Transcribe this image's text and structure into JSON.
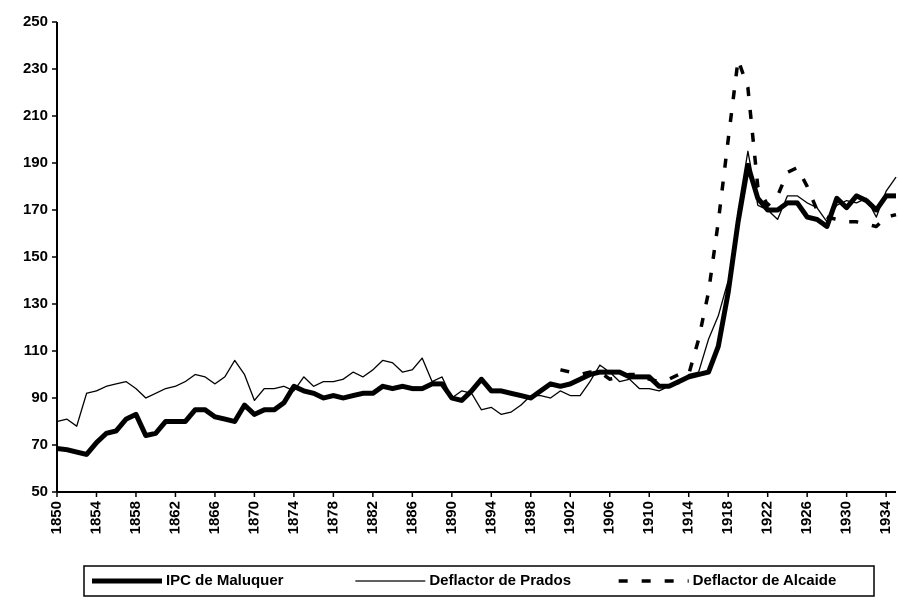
{
  "chart_data": {
    "type": "line",
    "x": [
      1850,
      1851,
      1852,
      1853,
      1854,
      1855,
      1856,
      1857,
      1858,
      1859,
      1860,
      1861,
      1862,
      1863,
      1864,
      1865,
      1866,
      1867,
      1868,
      1869,
      1870,
      1871,
      1872,
      1873,
      1874,
      1875,
      1876,
      1877,
      1878,
      1879,
      1880,
      1881,
      1882,
      1883,
      1884,
      1885,
      1886,
      1887,
      1888,
      1889,
      1890,
      1891,
      1892,
      1893,
      1894,
      1895,
      1896,
      1897,
      1898,
      1899,
      1900,
      1901,
      1902,
      1903,
      1904,
      1905,
      1906,
      1907,
      1908,
      1909,
      1910,
      1911,
      1912,
      1913,
      1914,
      1915,
      1916,
      1917,
      1918,
      1919,
      1920,
      1921,
      1922,
      1923,
      1924,
      1925,
      1926,
      1927,
      1928,
      1929,
      1930,
      1931,
      1932,
      1933,
      1934,
      1935
    ],
    "series": [
      {
        "name": "IPC de Maluquer",
        "color": "#000000",
        "line_width": 5,
        "line_style": "solid",
        "values": [
          68.5,
          68,
          67,
          66,
          71,
          75,
          76,
          81,
          83,
          74,
          75,
          80,
          80,
          80,
          85,
          85,
          82,
          81,
          80,
          87,
          83,
          85,
          85,
          88,
          95,
          93,
          92,
          90,
          91,
          90,
          91,
          92,
          92,
          95,
          94,
          95,
          94,
          94,
          96,
          96,
          90,
          89,
          93,
          98,
          93,
          93,
          92,
          91,
          90,
          93,
          96,
          95,
          96,
          98,
          100,
          101,
          101,
          101,
          99,
          99,
          99,
          95,
          95,
          97,
          99,
          100,
          101,
          112,
          135,
          165,
          189,
          175,
          170,
          170,
          173,
          173,
          167,
          166,
          163,
          175,
          171,
          176,
          174,
          170,
          176,
          176
        ]
      },
      {
        "name": "Deflactor de Prados",
        "color": "#000000",
        "line_width": 1.3,
        "line_style": "solid",
        "values": [
          80,
          81,
          78,
          92,
          93,
          95,
          96,
          97,
          94,
          90,
          92,
          94,
          95,
          97,
          100,
          99,
          96,
          99,
          106,
          100,
          89,
          94,
          94,
          95,
          93,
          99,
          95,
          97,
          97,
          98,
          101,
          99,
          102,
          106,
          105,
          101,
          102,
          107,
          97,
          99,
          90,
          93,
          92,
          85,
          86,
          83,
          84,
          87,
          91,
          91,
          90,
          93,
          91,
          91,
          97,
          104,
          101,
          97,
          98,
          94,
          94,
          93,
          95,
          96,
          100,
          101,
          115,
          125,
          140,
          170,
          195,
          172,
          170,
          166,
          176,
          176,
          173,
          171,
          165,
          172,
          174,
          173,
          175,
          167,
          178,
          184
        ]
      },
      {
        "name": "Deflactor de Alcaide",
        "color": "#000000",
        "line_width": 3.5,
        "line_style": "dashed",
        "values": [
          null,
          null,
          null,
          null,
          null,
          null,
          null,
          null,
          null,
          null,
          null,
          null,
          null,
          null,
          null,
          null,
          null,
          null,
          null,
          null,
          null,
          null,
          null,
          null,
          null,
          null,
          null,
          null,
          null,
          null,
          null,
          null,
          null,
          null,
          null,
          null,
          null,
          null,
          null,
          null,
          null,
          null,
          null,
          null,
          null,
          null,
          null,
          null,
          null,
          null,
          null,
          102,
          101,
          100,
          101,
          101,
          98,
          99,
          100,
          100,
          98,
          97,
          98,
          100,
          100,
          115,
          135,
          165,
          200,
          234,
          222,
          180,
          172,
          176,
          186,
          188,
          180,
          170,
          167,
          166,
          165,
          165,
          164,
          163,
          167,
          168
        ]
      }
    ],
    "xlim": [
      1850,
      1935
    ],
    "xticks": [
      1850,
      1854,
      1858,
      1862,
      1866,
      1870,
      1874,
      1878,
      1882,
      1886,
      1890,
      1894,
      1898,
      1902,
      1906,
      1910,
      1914,
      1918,
      1922,
      1926,
      1930,
      1934
    ],
    "ylim": [
      50,
      250
    ],
    "yticks": [
      50,
      70,
      90,
      110,
      130,
      150,
      170,
      190,
      210,
      230,
      250
    ],
    "legend": "bottom"
  }
}
